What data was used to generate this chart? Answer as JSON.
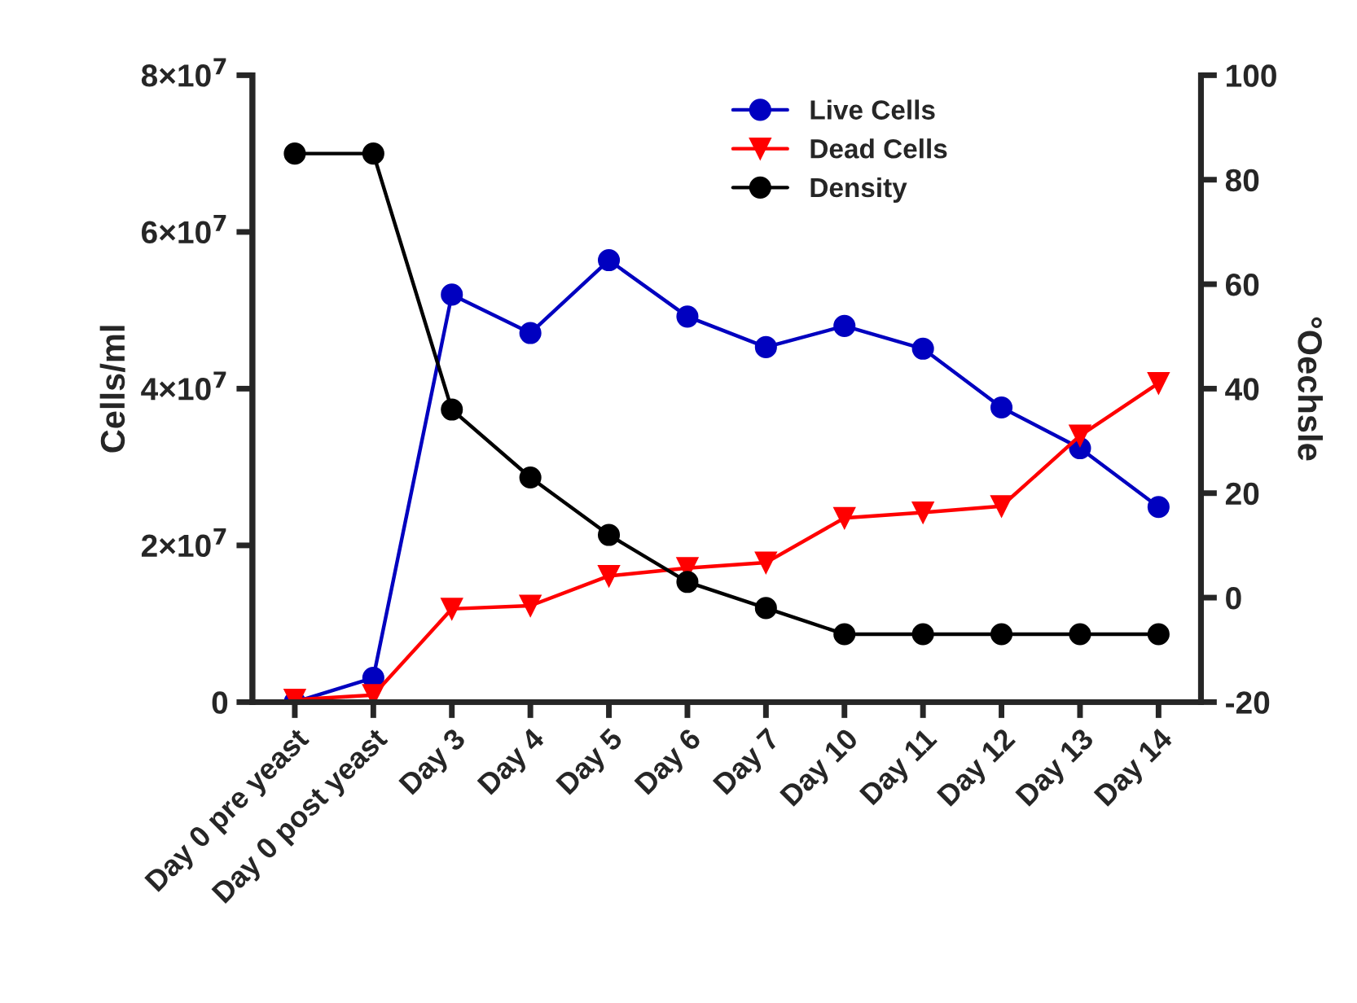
{
  "chart_data": {
    "type": "line",
    "categories": [
      "Day 0 pre yeast",
      "Day 0 post yeast",
      "Day 3",
      "Day 4",
      "Day 5",
      "Day 6",
      "Day 7",
      "Day 10",
      "Day 11",
      "Day 12",
      "Day 13",
      "Day 14"
    ],
    "series": [
      {
        "name": "Live Cells",
        "color": "#0000c0",
        "marker": "circle",
        "values": [
          0,
          3100000,
          52000000,
          47100000,
          56400000,
          49200000,
          45300000,
          48000000,
          45100000,
          37600000,
          32400000,
          24900000
        ]
      },
      {
        "name": "Dead Cells",
        "color": "#ff0000",
        "marker": "triangle",
        "values": [
          300000,
          900000,
          11900000,
          12300000,
          16100000,
          17100000,
          17800000,
          23500000,
          24200000,
          25000000,
          34000000,
          40700000
        ]
      },
      {
        "name": "Density",
        "color": "#000000",
        "marker": "circle",
        "axis": "y2",
        "values": [
          85,
          85,
          36,
          23,
          12,
          3,
          -2,
          -7,
          -7,
          -7,
          -7,
          -7
        ]
      }
    ],
    "ylabel": "Cells/ml",
    "y2label": "°Oechsle",
    "ylim": [
      0,
      80000000
    ],
    "yticks": [
      0,
      {
        "value": 20000000,
        "label": "2×10$^{7}$"
      },
      {
        "value": 40000000,
        "label": "4×10$^{7}$"
      },
      {
        "value": 60000000,
        "label": "6×10$^{7}$"
      },
      {
        "value": 80000000,
        "label": "8×10$^{7}$"
      }
    ],
    "y2lim": [
      -20,
      100
    ],
    "y2ticks": [
      -20,
      0,
      20,
      40,
      60,
      80,
      100
    ],
    "grid": false,
    "legend": "top"
  }
}
